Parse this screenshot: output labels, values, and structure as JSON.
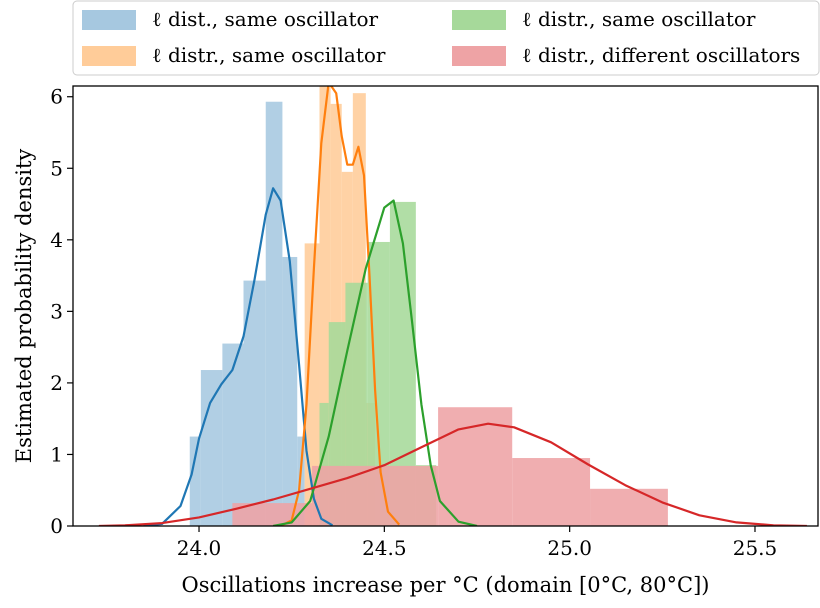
{
  "chart_data": {
    "type": "histogram",
    "xlabel": "Oscillations increase per °C (domain [0°C, 80°C])",
    "ylabel": "Estimated probability density",
    "xlim": [
      23.66,
      25.67
    ],
    "ylim": [
      0,
      6.15
    ],
    "x_ticks": [
      {
        "v": 24.0,
        "label": "24.0"
      },
      {
        "v": 24.5,
        "label": "24.5"
      },
      {
        "v": 25.0,
        "label": "25.0"
      },
      {
        "v": 25.5,
        "label": "25.5"
      }
    ],
    "y_ticks": [
      {
        "v": 0,
        "label": "0"
      },
      {
        "v": 1,
        "label": "1"
      },
      {
        "v": 2,
        "label": "2"
      },
      {
        "v": 3,
        "label": "3"
      },
      {
        "v": 4,
        "label": "4"
      },
      {
        "v": 5,
        "label": "5"
      },
      {
        "v": 6,
        "label": "6"
      }
    ],
    "legend_position": "top, outside plot, two columns",
    "series": [
      {
        "name": "ℓ dist., same oscillator",
        "hist_color": "#a6c8e0",
        "line_color": "#1f77b4",
        "bins": [
          {
            "x0": 23.975,
            "x1": 24.005,
            "h": 1.25
          },
          {
            "x0": 24.005,
            "x1": 24.063,
            "h": 2.18
          },
          {
            "x0": 24.063,
            "x1": 24.12,
            "h": 2.55
          },
          {
            "x0": 24.12,
            "x1": 24.18,
            "h": 3.43
          },
          {
            "x0": 24.18,
            "x1": 24.225,
            "h": 5.93
          },
          {
            "x0": 24.225,
            "x1": 24.265,
            "h": 3.76
          },
          {
            "x0": 24.265,
            "x1": 24.285,
            "h": 1.25
          }
        ],
        "kde": [
          [
            23.85,
            0.0
          ],
          [
            23.9,
            0.03
          ],
          [
            23.95,
            0.28
          ],
          [
            23.98,
            0.72
          ],
          [
            24.0,
            1.22
          ],
          [
            24.03,
            1.72
          ],
          [
            24.06,
            1.98
          ],
          [
            24.09,
            2.18
          ],
          [
            24.12,
            2.65
          ],
          [
            24.15,
            3.45
          ],
          [
            24.18,
            4.35
          ],
          [
            24.2,
            4.72
          ],
          [
            24.22,
            4.55
          ],
          [
            24.245,
            3.7
          ],
          [
            24.27,
            2.25
          ],
          [
            24.29,
            1.05
          ],
          [
            24.31,
            0.38
          ],
          [
            24.33,
            0.1
          ],
          [
            24.36,
            0.01
          ]
        ]
      },
      {
        "name": "ℓ distr., same oscillator",
        "hist_color": "#ffcc99",
        "line_color": "#ff7f0e",
        "bins": [
          {
            "x0": 24.285,
            "x1": 24.325,
            "h": 3.95
          },
          {
            "x0": 24.325,
            "x1": 24.355,
            "h": 6.15
          },
          {
            "x0": 24.355,
            "x1": 24.385,
            "h": 5.9
          },
          {
            "x0": 24.385,
            "x1": 24.415,
            "h": 4.95
          },
          {
            "x0": 24.415,
            "x1": 24.45,
            "h": 6.05
          },
          {
            "x0": 24.45,
            "x1": 24.475,
            "h": 1.72
          }
        ],
        "kde": [
          [
            24.22,
            0.0
          ],
          [
            24.25,
            0.08
          ],
          [
            24.27,
            0.5
          ],
          [
            24.29,
            1.7
          ],
          [
            24.31,
            3.6
          ],
          [
            24.33,
            5.35
          ],
          [
            24.35,
            6.2
          ],
          [
            24.37,
            6.05
          ],
          [
            24.385,
            5.45
          ],
          [
            24.4,
            5.05
          ],
          [
            24.415,
            5.05
          ],
          [
            24.43,
            5.3
          ],
          [
            24.445,
            4.9
          ],
          [
            24.46,
            3.5
          ],
          [
            24.475,
            1.9
          ],
          [
            24.49,
            0.75
          ],
          [
            24.51,
            0.2
          ],
          [
            24.54,
            0.02
          ]
        ]
      },
      {
        "name": "ℓ distr., same oscillator",
        "hist_color": "#a6d99a",
        "line_color": "#2ca02c",
        "bins": [
          {
            "x0": 24.325,
            "x1": 24.35,
            "h": 1.72
          },
          {
            "x0": 24.35,
            "x1": 24.395,
            "h": 2.85
          },
          {
            "x0": 24.395,
            "x1": 24.455,
            "h": 3.4
          },
          {
            "x0": 24.455,
            "x1": 24.515,
            "h": 3.97
          },
          {
            "x0": 24.515,
            "x1": 24.585,
            "h": 4.53
          },
          {
            "x0": 24.585,
            "x1": 24.64,
            "h": 0.85
          }
        ],
        "kde": [
          [
            24.2,
            0.0
          ],
          [
            24.25,
            0.05
          ],
          [
            24.3,
            0.35
          ],
          [
            24.35,
            1.25
          ],
          [
            24.4,
            2.45
          ],
          [
            24.45,
            3.6
          ],
          [
            24.5,
            4.45
          ],
          [
            24.525,
            4.55
          ],
          [
            24.55,
            3.95
          ],
          [
            24.575,
            2.85
          ],
          [
            24.6,
            1.7
          ],
          [
            24.625,
            0.85
          ],
          [
            24.65,
            0.35
          ],
          [
            24.7,
            0.06
          ],
          [
            24.75,
            0.0
          ]
        ]
      },
      {
        "name": "ℓ distr., different oscillators",
        "hist_color": "#eea3a5",
        "line_color": "#d62728",
        "bins": [
          {
            "x0": 24.09,
            "x1": 24.305,
            "h": 0.32
          },
          {
            "x0": 24.305,
            "x1": 24.645,
            "h": 0.84
          },
          {
            "x0": 24.645,
            "x1": 24.845,
            "h": 1.66
          },
          {
            "x0": 24.845,
            "x1": 25.055,
            "h": 0.95
          },
          {
            "x0": 25.055,
            "x1": 25.265,
            "h": 0.52
          }
        ],
        "kde": [
          [
            23.73,
            0.0
          ],
          [
            23.8,
            0.01
          ],
          [
            23.9,
            0.04
          ],
          [
            24.0,
            0.12
          ],
          [
            24.1,
            0.24
          ],
          [
            24.2,
            0.37
          ],
          [
            24.3,
            0.52
          ],
          [
            24.4,
            0.67
          ],
          [
            24.5,
            0.85
          ],
          [
            24.6,
            1.1
          ],
          [
            24.7,
            1.35
          ],
          [
            24.78,
            1.43
          ],
          [
            24.85,
            1.38
          ],
          [
            24.95,
            1.17
          ],
          [
            25.05,
            0.86
          ],
          [
            25.15,
            0.57
          ],
          [
            25.25,
            0.33
          ],
          [
            25.35,
            0.15
          ],
          [
            25.45,
            0.05
          ],
          [
            25.55,
            0.01
          ],
          [
            25.64,
            0.0
          ]
        ]
      }
    ]
  }
}
